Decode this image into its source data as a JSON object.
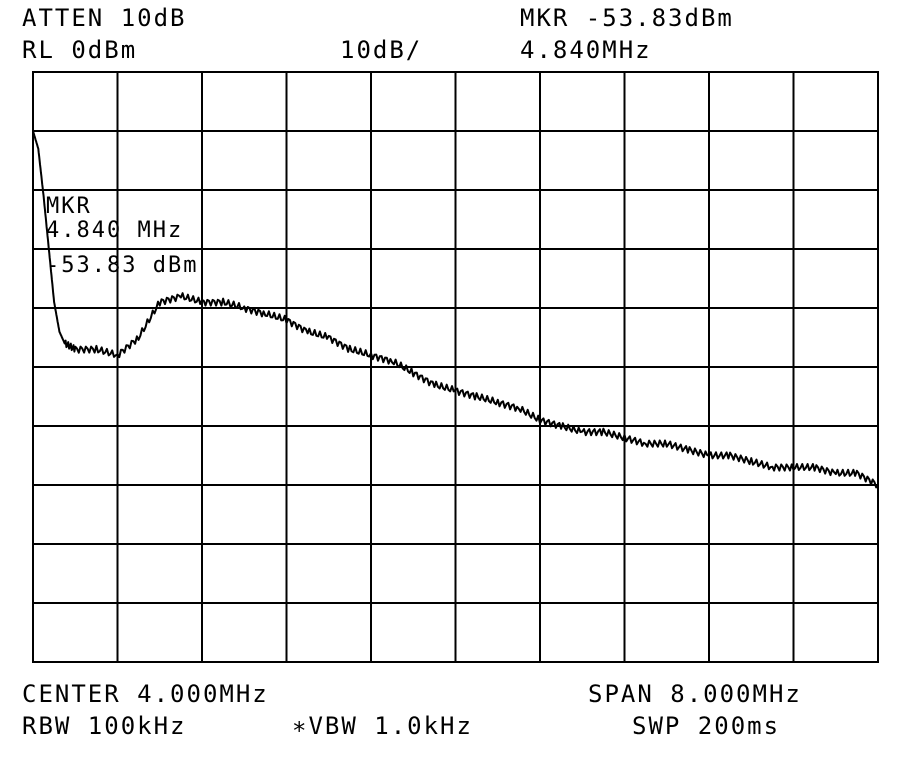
{
  "header": {
    "atten": "ATTEN 10dB",
    "ref_level": "RL 0dBm",
    "scale": "10dB/",
    "marker_amplitude": "MKR -53.83dBm",
    "marker_freq": "4.840MHz"
  },
  "marker_label": {
    "title": "MKR",
    "freq": "4.840 MHz",
    "amplitude": "-53.83 dBm"
  },
  "footer": {
    "center": "CENTER 4.000MHz",
    "span": "SPAN 8.000MHz",
    "rbw": "RBW 100kHz",
    "vbw": "∗VBW 1.0kHz",
    "sweep": "SWP 200ms"
  },
  "chart_data": {
    "type": "line",
    "x_unit": "MHz",
    "y_unit": "dBm",
    "xlim": [
      0,
      8
    ],
    "ylim": [
      -100,
      0
    ],
    "grid": true,
    "series": [
      {
        "x": [
          0.0,
          0.05,
          0.1,
          0.15,
          0.2,
          0.25,
          0.3,
          0.4,
          0.6,
          0.8,
          1.0,
          1.2,
          1.4,
          1.6,
          1.8,
          2.0,
          2.2,
          2.4,
          2.6,
          2.8,
          3.0,
          3.2,
          3.4,
          3.6,
          3.8,
          4.0,
          4.2,
          4.4,
          4.6,
          4.8,
          5.0,
          5.2,
          5.4,
          5.6,
          5.8,
          6.0,
          6.2,
          6.4,
          6.6,
          6.8,
          7.0,
          7.2,
          7.4,
          7.6,
          7.8,
          8.0
        ],
        "y": [
          -10,
          -13,
          -21,
          -30,
          -39,
          -44,
          -46,
          -47,
          -47,
          -48,
          -45,
          -39,
          -38,
          -39,
          -39,
          -40,
          -41,
          -42,
          -44,
          -45,
          -47,
          -48,
          -49,
          -51,
          -53,
          -54,
          -55,
          -56,
          -57,
          -59,
          -60,
          -61,
          -61,
          -62,
          -63,
          -63,
          -64,
          -65,
          -65,
          -66,
          -67,
          -67,
          -67,
          -68,
          -68,
          -70
        ]
      }
    ]
  }
}
